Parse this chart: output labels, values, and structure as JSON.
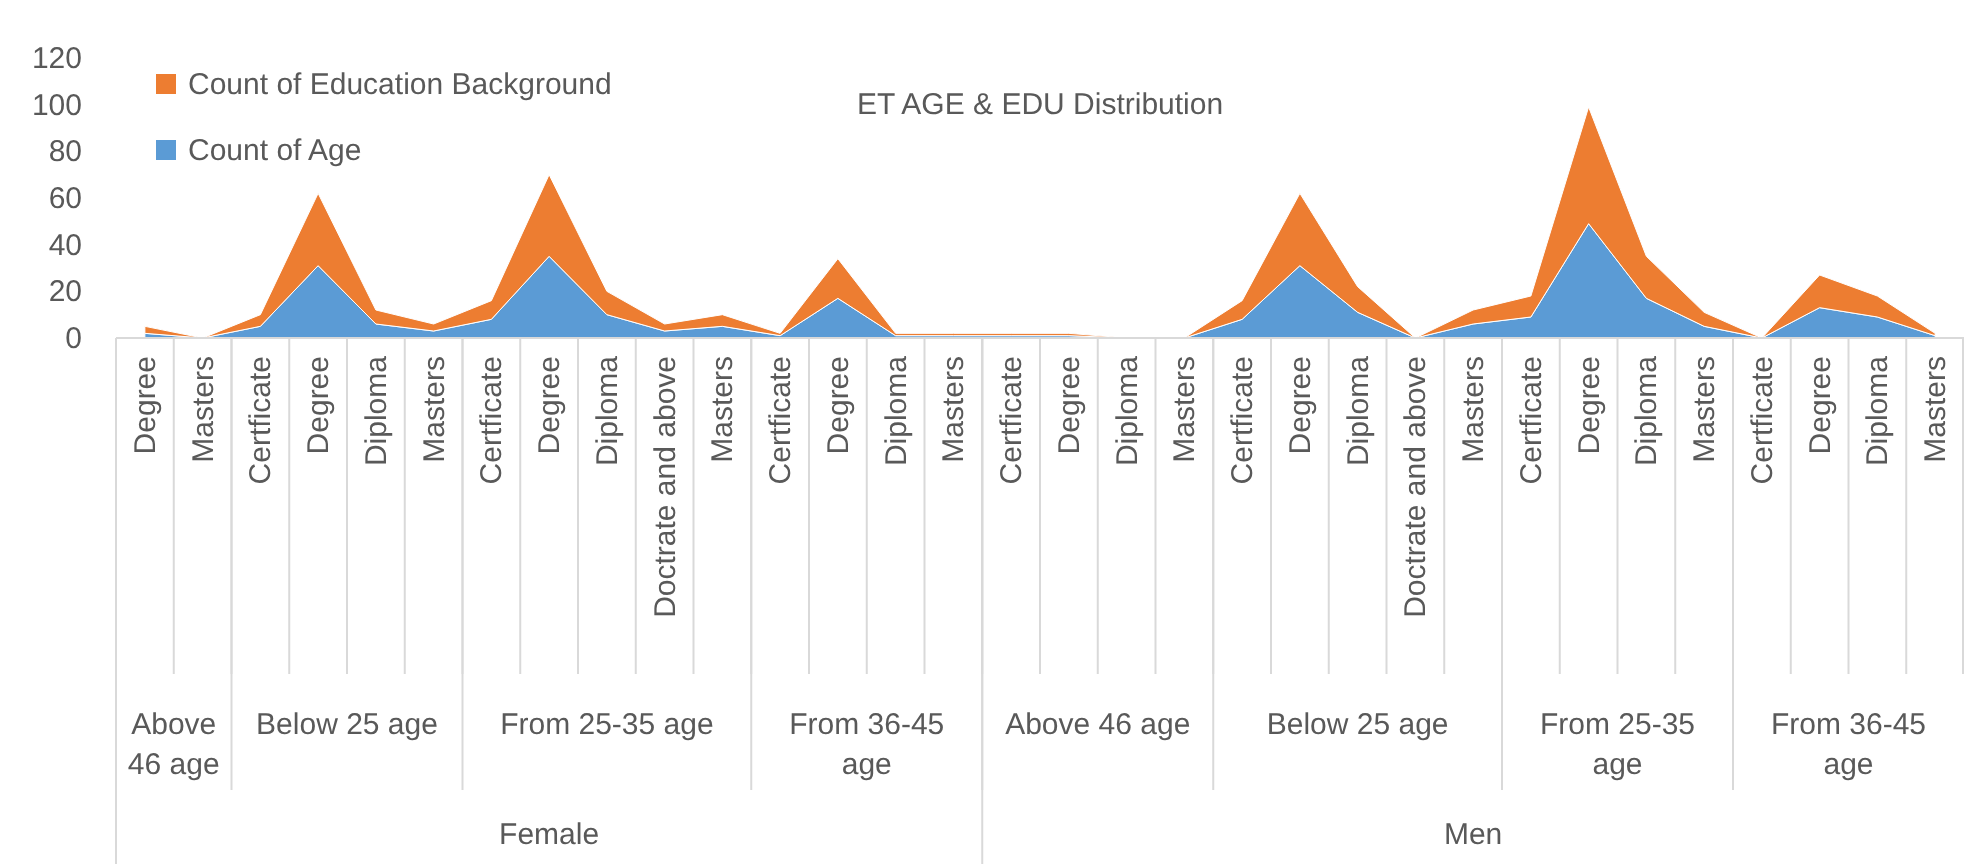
{
  "chart_data": {
    "type": "area",
    "title": "ET AGE & EDU Distribution",
    "stacked": true,
    "categories": [
      "Degree",
      "Masters",
      "Certficate",
      "Degree",
      "Diploma",
      "Masters",
      "Certficate",
      "Degree",
      "Diploma",
      "Doctrate and above",
      "Masters",
      "Certficate",
      "Degree",
      "Diploma",
      "Masters",
      "Certficate",
      "Degree",
      "Diploma",
      "Masters",
      "Certficate",
      "Degree",
      "Diploma",
      "Doctrate and above",
      "Masters",
      "Certficate",
      "Degree",
      "Diploma",
      "Masters",
      "Certficate",
      "Degree",
      "Diploma",
      "Masters"
    ],
    "annotations": [
      "Above 46 age",
      "Below 25 age",
      "From 25-35 age",
      "From 36-45 age",
      "Above 46 age",
      "Below 25 age",
      "From 25-35 age",
      "From 36-45 age",
      "Female",
      "Men"
    ],
    "series": [
      {
        "name": "Count of Age",
        "color": "#5b9bd5",
        "values": [
          2,
          0,
          5,
          31,
          6,
          3,
          8,
          35,
          10,
          3,
          5,
          1,
          17,
          1,
          1,
          1,
          1,
          0,
          0,
          8,
          31,
          11,
          0,
          6,
          9,
          49,
          17,
          5,
          0,
          13,
          9,
          1
        ]
      },
      {
        "name": "Count of Education Background",
        "color": "#ed7d31",
        "values": [
          3,
          0,
          5,
          31,
          6,
          3,
          8,
          35,
          10,
          3,
          5,
          1,
          17,
          1,
          1,
          1,
          1,
          0,
          0,
          8,
          31,
          11,
          0,
          6,
          9,
          50,
          18,
          6,
          0,
          14,
          9,
          1
        ]
      }
    ],
    "ylim": [
      0,
      120
    ],
    "yticks": [
      0,
      20,
      40,
      60,
      80,
      100,
      120
    ],
    "grid": false,
    "legend": "top left"
  }
}
